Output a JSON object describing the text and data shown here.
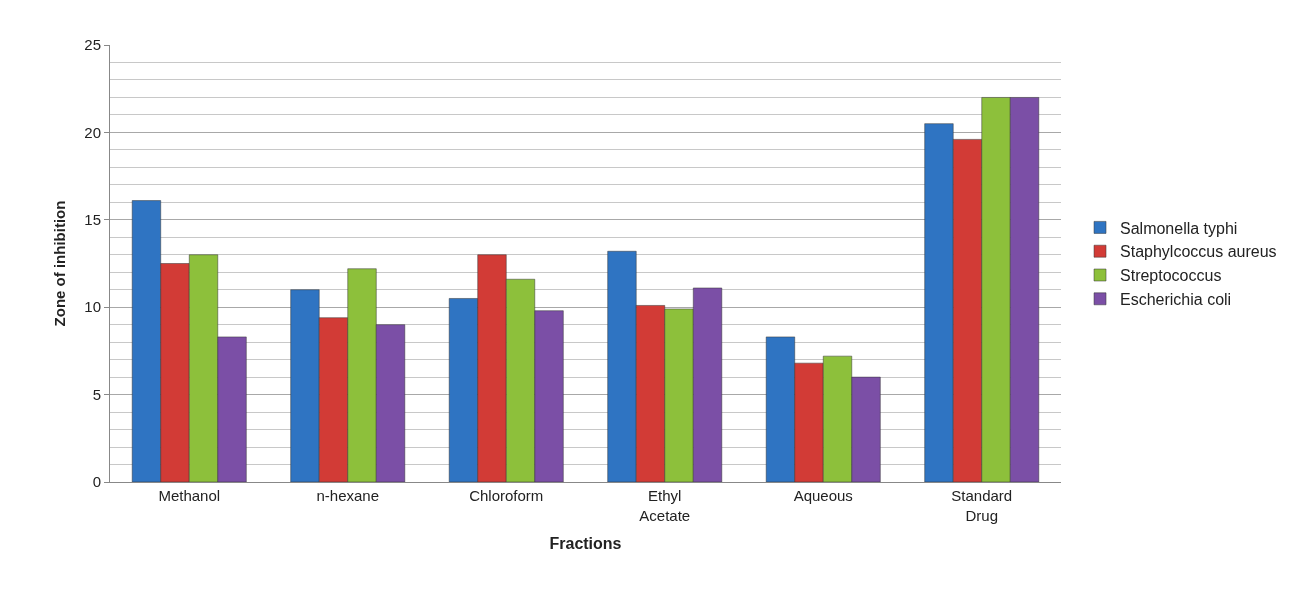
{
  "chart_data": {
    "type": "bar",
    "xlabel": "Fractions",
    "ylabel": "Zone of inhibition",
    "categories": [
      "Methanol",
      "n-hexane",
      "Chloroform",
      "Ethyl Acetate",
      "Aqueous",
      "Standard Drug"
    ],
    "series": [
      {
        "name": "Salmonella typhi",
        "color": "#2f74c2",
        "values": [
          16.1,
          11.0,
          10.5,
          13.2,
          8.3,
          20.5
        ]
      },
      {
        "name": "Staphylcoccus aureus",
        "color": "#d23b36",
        "values": [
          12.5,
          9.4,
          13.0,
          10.1,
          6.8,
          19.6
        ]
      },
      {
        "name": "Streptococcus",
        "color": "#8dc03b",
        "values": [
          13.0,
          12.2,
          11.6,
          9.9,
          7.2,
          22.0
        ]
      },
      {
        "name": "Escherichia coli",
        "color": "#7b4fa6",
        "values": [
          8.3,
          9.0,
          9.8,
          11.1,
          6.0,
          22.0
        ]
      }
    ],
    "ylim": [
      0,
      25
    ],
    "yticks": [
      0,
      5,
      10,
      15,
      20,
      25
    ],
    "grid": "y",
    "legend": "right"
  }
}
